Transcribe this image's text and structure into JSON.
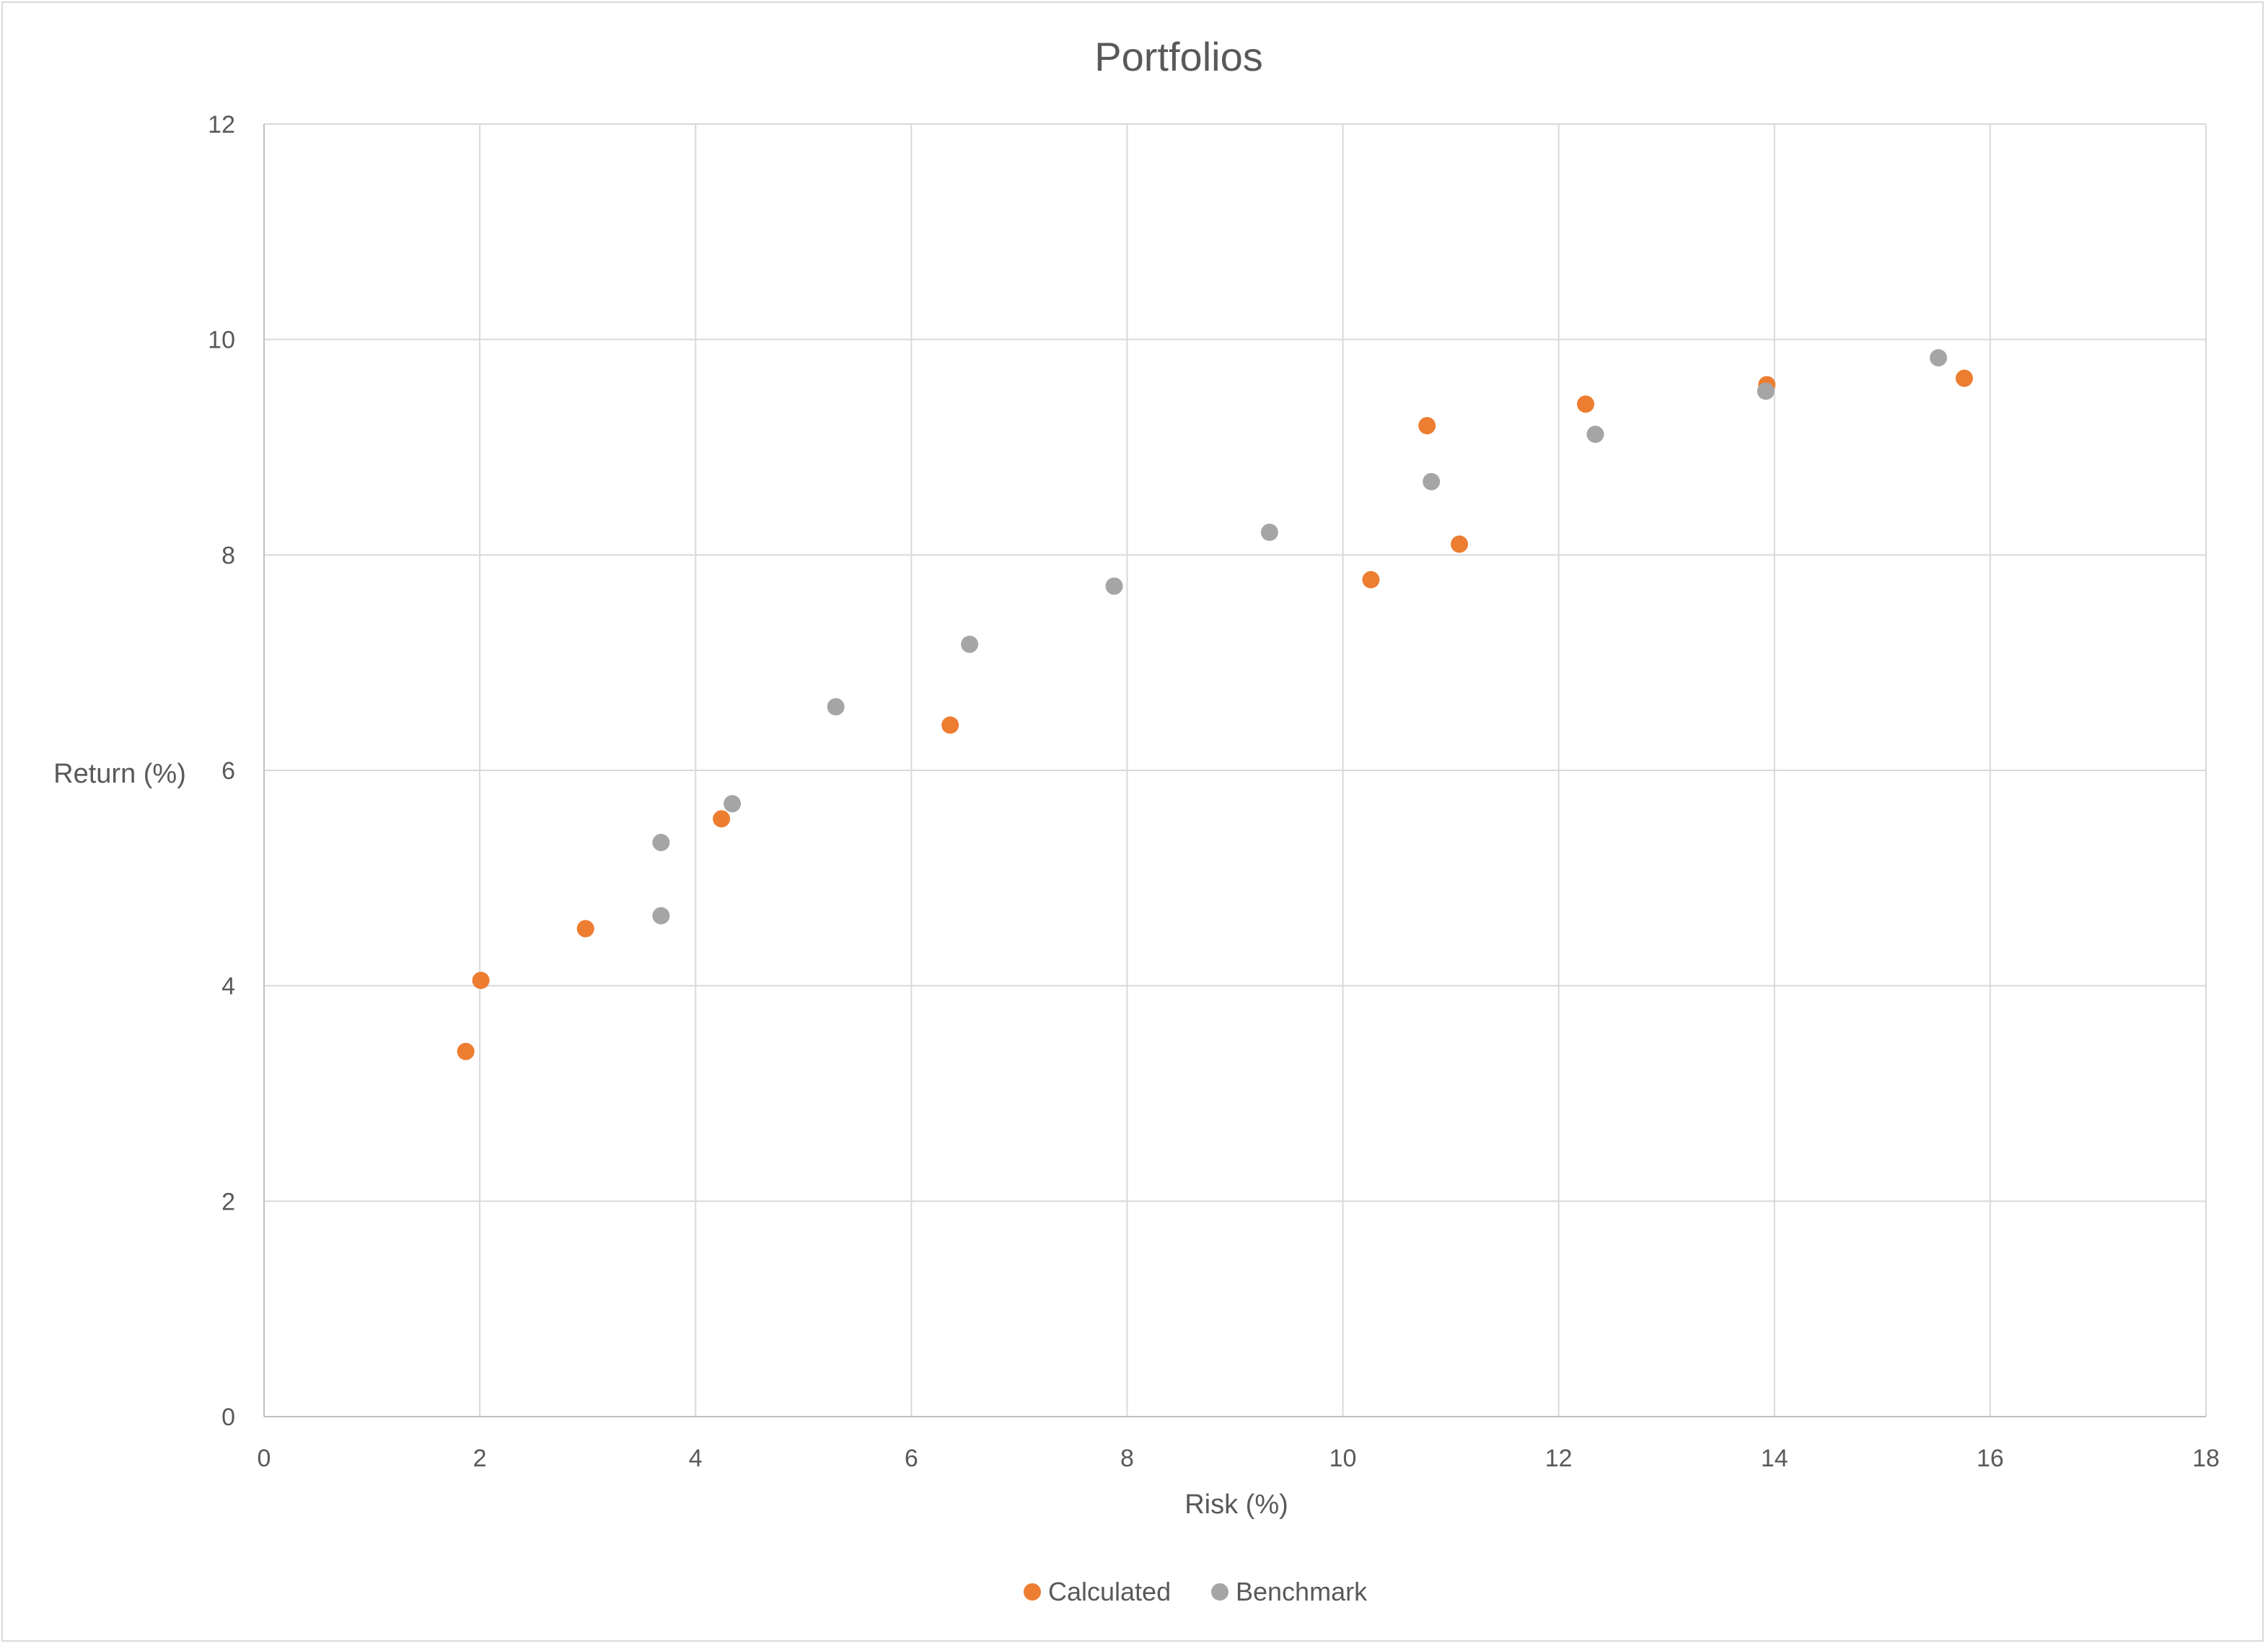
{
  "chart_data": {
    "type": "scatter",
    "title": "Portfolios",
    "xlabel": "Risk (%)",
    "ylabel": "Return (%)",
    "xlim": [
      0,
      18
    ],
    "ylim": [
      0,
      12
    ],
    "xticks": [
      0,
      2,
      4,
      6,
      8,
      10,
      12,
      14,
      16,
      18
    ],
    "yticks": [
      0,
      2,
      4,
      6,
      8,
      10,
      12
    ],
    "grid": true,
    "legend_position": "bottom",
    "series": [
      {
        "name": "Calculated",
        "color": "#ED7D31",
        "points": [
          {
            "x": 1.87,
            "y": 3.39
          },
          {
            "x": 2.01,
            "y": 4.05
          },
          {
            "x": 2.98,
            "y": 4.53
          },
          {
            "x": 4.24,
            "y": 5.55
          },
          {
            "x": 6.36,
            "y": 6.42
          },
          {
            "x": 10.26,
            "y": 7.77
          },
          {
            "x": 10.78,
            "y": 9.2
          },
          {
            "x": 11.08,
            "y": 8.1
          },
          {
            "x": 12.25,
            "y": 9.4
          },
          {
            "x": 13.93,
            "y": 9.58
          },
          {
            "x": 15.76,
            "y": 9.64
          }
        ]
      },
      {
        "name": "Benchmark",
        "color": "#A5A5A5",
        "points": [
          {
            "x": 3.68,
            "y": 5.33
          },
          {
            "x": 3.68,
            "y": 4.65
          },
          {
            "x": 4.34,
            "y": 5.69
          },
          {
            "x": 5.3,
            "y": 6.59
          },
          {
            "x": 6.54,
            "y": 7.17
          },
          {
            "x": 7.88,
            "y": 7.71
          },
          {
            "x": 9.32,
            "y": 8.21
          },
          {
            "x": 10.82,
            "y": 8.68
          },
          {
            "x": 12.34,
            "y": 9.12
          },
          {
            "x": 13.92,
            "y": 9.52
          },
          {
            "x": 15.52,
            "y": 9.83
          }
        ]
      }
    ]
  }
}
